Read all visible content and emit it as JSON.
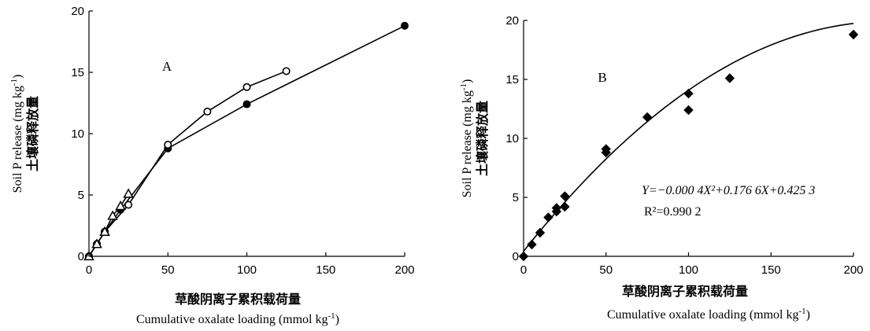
{
  "chart_data": [
    {
      "type": "line",
      "panel_label": "A",
      "xlabel_cn": "草酸阴离子累积载荷量",
      "xlabel_en": "Cumulative oxalate loading (mmol kg",
      "xlabel_en_sup": "-1",
      "xlabel_en_end": ")",
      "ylabel_en": "Soil P release (mg kg",
      "ylabel_en_sup": "-1",
      "ylabel_en_end": ")",
      "ylabel_cn": "土壤磷释放量",
      "xlim": [
        0,
        200
      ],
      "ylim": [
        0,
        20
      ],
      "xticks": [
        "0",
        "50",
        "100",
        "150",
        "200"
      ],
      "yticks": [
        "0",
        "5",
        "10",
        "15",
        "20"
      ],
      "series": [
        {
          "marker": "filled-circle",
          "x": [
            0,
            5,
            10,
            20,
            50,
            100,
            200
          ],
          "y": [
            0,
            1.0,
            2.0,
            3.8,
            8.8,
            12.4,
            18.8
          ]
        },
        {
          "marker": "open-circle",
          "x": [
            0,
            5,
            10,
            25,
            50,
            75,
            100,
            125
          ],
          "y": [
            0,
            1.0,
            2.0,
            4.2,
            9.1,
            11.8,
            13.8,
            15.1
          ]
        },
        {
          "marker": "open-triangle",
          "x": [
            0,
            5,
            10,
            15,
            20,
            25
          ],
          "y": [
            0,
            1.0,
            2.0,
            3.3,
            4.1,
            5.1
          ]
        }
      ]
    },
    {
      "type": "scatter",
      "panel_label": "B",
      "xlabel_cn": "草酸阴离子累积载荷量",
      "xlabel_en": "Cumulative oxalate loading (mmol kg",
      "xlabel_en_sup": "-1",
      "xlabel_en_end": ")",
      "ylabel_en": "Soil P release (mg kg",
      "ylabel_en_sup": "-1",
      "ylabel_en_end": ")",
      "ylabel_cn": "土壤磷释放量",
      "xlim": [
        0,
        200
      ],
      "ylim": [
        0,
        20
      ],
      "xticks": [
        "0",
        "50",
        "100",
        "150",
        "200"
      ],
      "yticks": [
        "0",
        "5",
        "10",
        "15",
        "20"
      ],
      "series": [
        {
          "marker": "filled-diamond",
          "x": [
            0,
            5,
            10,
            15,
            20,
            20,
            25,
            25,
            50,
            50,
            75,
            100,
            100,
            125,
            200
          ],
          "y": [
            0,
            1.0,
            2.0,
            3.3,
            3.8,
            4.1,
            4.2,
            5.1,
            8.8,
            9.1,
            11.8,
            12.4,
            13.8,
            15.1,
            18.8
          ]
        }
      ],
      "fit": {
        "a": -0.0004,
        "b": 0.1766,
        "c": 0.4253
      },
      "equation": "Y=−0.000 4X²+0.176 6X+0.425 3",
      "r2": "R²=0.990 2"
    }
  ]
}
